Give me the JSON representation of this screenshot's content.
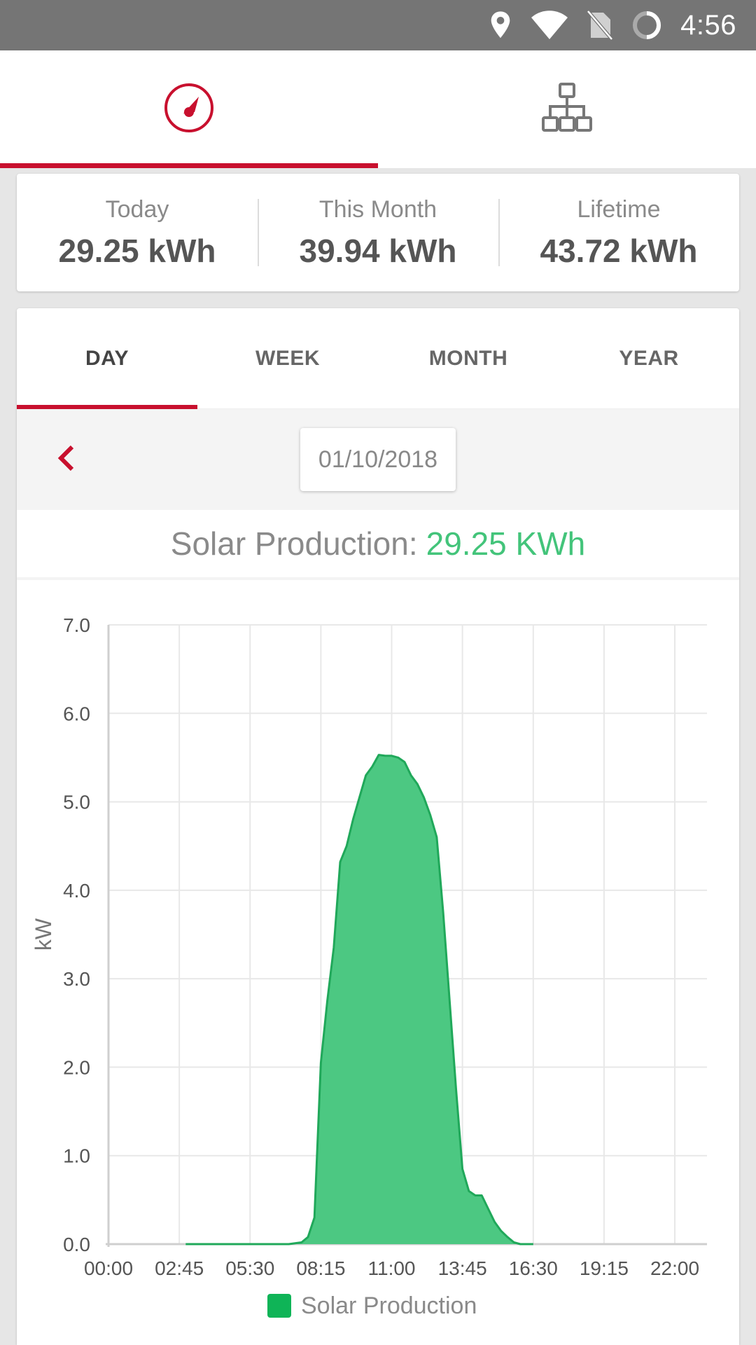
{
  "status_bar": {
    "time": "4:56",
    "icons": [
      "location-pin-icon",
      "wifi-icon",
      "no-sim-icon",
      "sync-icon"
    ]
  },
  "top_nav": {
    "tabs": [
      {
        "icon": "gauge-icon",
        "active": true
      },
      {
        "icon": "network-tree-icon",
        "active": false
      }
    ],
    "accent_color": "#c8102e"
  },
  "summary": {
    "today": {
      "label": "Today",
      "value": "29.25 kWh"
    },
    "this_month": {
      "label": "This Month",
      "value": "39.94 kWh"
    },
    "lifetime": {
      "label": "Lifetime",
      "value": "43.72 kWh"
    }
  },
  "period_tabs": [
    {
      "label": "DAY",
      "active": true
    },
    {
      "label": "WEEK",
      "active": false
    },
    {
      "label": "MONTH",
      "active": false
    },
    {
      "label": "YEAR",
      "active": false
    }
  ],
  "date_picker": {
    "value": "01/10/2018"
  },
  "production": {
    "label": "Solar Production:",
    "value": "29.25 KWh",
    "value_color": "#43c47a"
  },
  "chart_data": {
    "type": "area",
    "title": "",
    "xlabel": "",
    "ylabel": "kW",
    "x_ticks": [
      "00:00",
      "02:45",
      "05:30",
      "08:15",
      "11:00",
      "13:45",
      "16:30",
      "19:15",
      "22:00"
    ],
    "y_ticks": [
      "0.0",
      "1.0",
      "2.0",
      "3.0",
      "4.0",
      "5.0",
      "6.0",
      "7.0"
    ],
    "ylim": [
      0,
      7
    ],
    "grid": true,
    "legend_position": "bottom-center",
    "fill_color": "#4cc882",
    "line_color": "#20a85a",
    "legend_swatch_color": "#0fb457",
    "series": [
      {
        "name": "Solar Production",
        "x": [
          "03:00",
          "04:00",
          "05:00",
          "06:00",
          "07:00",
          "07:30",
          "07:45",
          "08:00",
          "08:15",
          "08:30",
          "08:45",
          "09:00",
          "09:15",
          "09:30",
          "09:45",
          "10:00",
          "10:15",
          "10:30",
          "10:45",
          "11:00",
          "11:15",
          "11:30",
          "11:45",
          "12:00",
          "12:15",
          "12:30",
          "12:45",
          "13:00",
          "13:15",
          "13:30",
          "13:45",
          "14:00",
          "14:15",
          "14:30",
          "14:45",
          "15:00",
          "15:15",
          "15:30",
          "15:45",
          "16:00",
          "16:15",
          "16:30"
        ],
        "values": [
          0,
          0,
          0,
          0,
          0,
          0.02,
          0.08,
          0.3,
          2.05,
          2.75,
          3.35,
          4.32,
          4.5,
          4.8,
          5.05,
          5.3,
          5.4,
          5.53,
          5.52,
          5.52,
          5.5,
          5.45,
          5.3,
          5.2,
          5.05,
          4.85,
          4.6,
          3.75,
          2.75,
          1.75,
          0.85,
          0.6,
          0.55,
          0.55,
          0.4,
          0.25,
          0.15,
          0.08,
          0.02,
          0,
          0,
          0
        ]
      }
    ]
  }
}
